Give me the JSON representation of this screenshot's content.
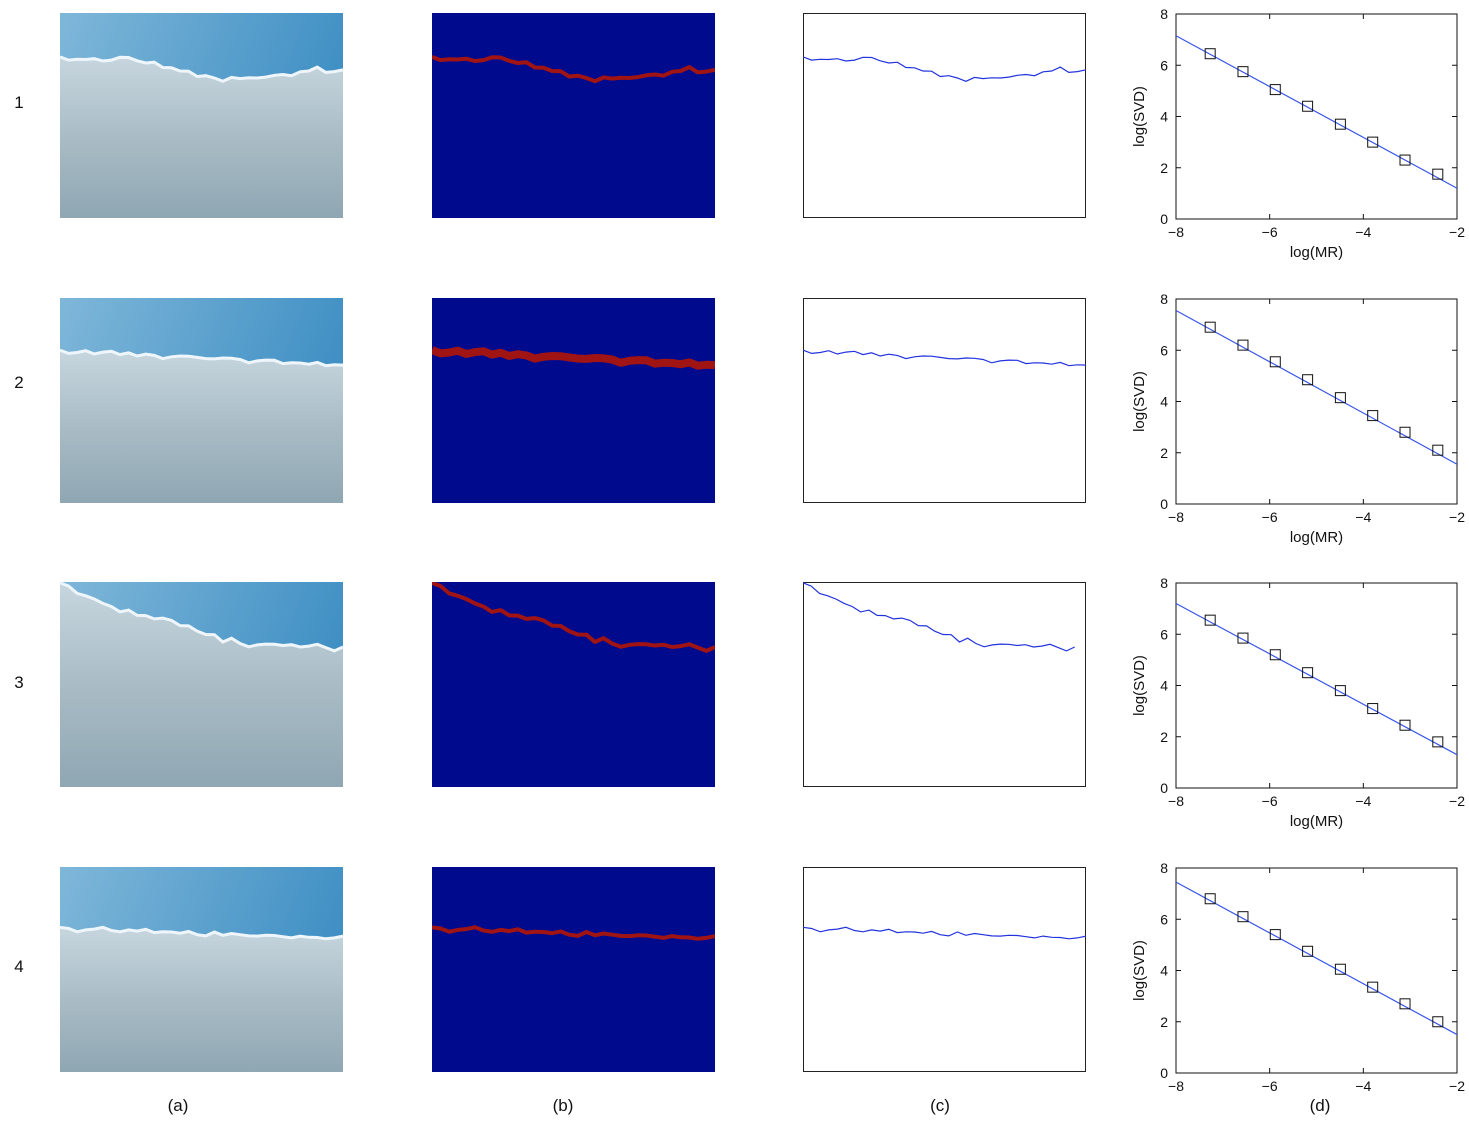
{
  "row_labels": [
    "1",
    "2",
    "3",
    "4"
  ],
  "column_labels": [
    "(a)",
    "(b)",
    "(c)",
    "(d)"
  ],
  "colors": {
    "sky_top": "#3f8fc4",
    "sky_bottom": "#7fb7d9",
    "snow": "#a9bcc6",
    "seg_background": "#000a8c",
    "seg_edge": "#a01414",
    "profile_line": "#2233dd",
    "fit_line": "#3a56e8",
    "marker": "#111111"
  },
  "chart_data": [
    {
      "type": "scatter",
      "panel": "1(d)",
      "xlabel": "log(MR)",
      "ylabel": "log(SVD)",
      "xlim": [
        -8,
        -2
      ],
      "ylim": [
        0,
        8
      ],
      "xticks": [
        "−8",
        "−6",
        "−4",
        "−2"
      ],
      "yticks": [
        "0",
        "2",
        "4",
        "6",
        "8"
      ],
      "x": [
        -7.27,
        -6.57,
        -5.88,
        -5.19,
        -4.49,
        -3.8,
        -3.11,
        -2.41
      ],
      "y": [
        6.45,
        5.75,
        5.05,
        4.4,
        3.7,
        3.0,
        2.3,
        1.75
      ],
      "fit": {
        "x": [
          -8,
          -2
        ],
        "y": [
          7.15,
          1.2
        ]
      }
    },
    {
      "type": "scatter",
      "panel": "2(d)",
      "xlabel": "log(MR)",
      "ylabel": "log(SVD)",
      "xlim": [
        -8,
        -2
      ],
      "ylim": [
        0,
        8
      ],
      "xticks": [
        "−8",
        "−6",
        "−4",
        "−2"
      ],
      "yticks": [
        "0",
        "2",
        "4",
        "6",
        "8"
      ],
      "x": [
        -7.27,
        -6.57,
        -5.88,
        -5.19,
        -4.49,
        -3.8,
        -3.11,
        -2.41
      ],
      "y": [
        6.9,
        6.2,
        5.55,
        4.85,
        4.15,
        3.45,
        2.8,
        2.1
      ],
      "fit": {
        "x": [
          -8,
          -2
        ],
        "y": [
          7.55,
          1.55
        ]
      }
    },
    {
      "type": "scatter",
      "panel": "3(d)",
      "xlabel": "log(MR)",
      "ylabel": "log(SVD)",
      "xlim": [
        -8,
        -2
      ],
      "ylim": [
        0,
        8
      ],
      "xticks": [
        "−8",
        "−6",
        "−4",
        "−2"
      ],
      "yticks": [
        "0",
        "2",
        "4",
        "6",
        "8"
      ],
      "x": [
        -7.27,
        -6.57,
        -5.88,
        -5.19,
        -4.49,
        -3.8,
        -3.11,
        -2.41
      ],
      "y": [
        6.55,
        5.85,
        5.2,
        4.5,
        3.8,
        3.1,
        2.45,
        1.8
      ],
      "fit": {
        "x": [
          -8,
          -2
        ],
        "y": [
          7.2,
          1.3
        ]
      }
    },
    {
      "type": "scatter",
      "panel": "4(d)",
      "xlabel": "",
      "ylabel": "log(SVD)",
      "xlim": [
        -8,
        -2
      ],
      "ylim": [
        0,
        8
      ],
      "xticks": [
        "−8",
        "−6",
        "−4",
        "−2"
      ],
      "yticks": [
        "0",
        "2",
        "4",
        "6",
        "8"
      ],
      "x": [
        -7.27,
        -6.57,
        -5.88,
        -5.19,
        -4.49,
        -3.8,
        -3.11,
        -2.41
      ],
      "y": [
        6.8,
        6.1,
        5.4,
        4.75,
        4.05,
        3.35,
        2.7,
        2.0
      ],
      "fit": {
        "x": [
          -8,
          -2
        ],
        "y": [
          7.45,
          1.5
        ]
      }
    }
  ],
  "horizon_profiles": [
    [
      0.22,
      0.23,
      0.22,
      0.23,
      0.22,
      0.24,
      0.23,
      0.21,
      0.22,
      0.23,
      0.25,
      0.24,
      0.26,
      0.27,
      0.28,
      0.29,
      0.31,
      0.3,
      0.32,
      0.33,
      0.32,
      0.32,
      0.31,
      0.32,
      0.31,
      0.31,
      0.3,
      0.3,
      0.29,
      0.28,
      0.27,
      0.29,
      0.28,
      0.28
    ],
    [
      0.26,
      0.27,
      0.26,
      0.26,
      0.27,
      0.27,
      0.26,
      0.27,
      0.27,
      0.28,
      0.28,
      0.28,
      0.29,
      0.29,
      0.28,
      0.29,
      0.29,
      0.29,
      0.3,
      0.29,
      0.3,
      0.3,
      0.31,
      0.31,
      0.3,
      0.31,
      0.32,
      0.31,
      0.32,
      0.32,
      0.32,
      0.33,
      0.32,
      0.33
    ],
    [
      0.01,
      0.02,
      0.05,
      0.07,
      0.08,
      0.11,
      0.12,
      0.14,
      0.14,
      0.16,
      0.17,
      0.18,
      0.17,
      0.19,
      0.21,
      0.22,
      0.24,
      0.25,
      0.26,
      0.29,
      0.28,
      0.3,
      0.31,
      0.31,
      0.3,
      0.31,
      0.31,
      0.3,
      0.32,
      0.31,
      0.31,
      0.32,
      0.33,
      0.32
    ],
    [
      0.3,
      0.3,
      0.31,
      0.31,
      0.3,
      0.3,
      0.31,
      0.31,
      0.31,
      0.31,
      0.31,
      0.32,
      0.31,
      0.32,
      0.32,
      0.32,
      0.33,
      0.33,
      0.32,
      0.33,
      0.33,
      0.33,
      0.33,
      0.34,
      0.33,
      0.34,
      0.34,
      0.34,
      0.34,
      0.34,
      0.35,
      0.35,
      0.34,
      0.34
    ]
  ]
}
